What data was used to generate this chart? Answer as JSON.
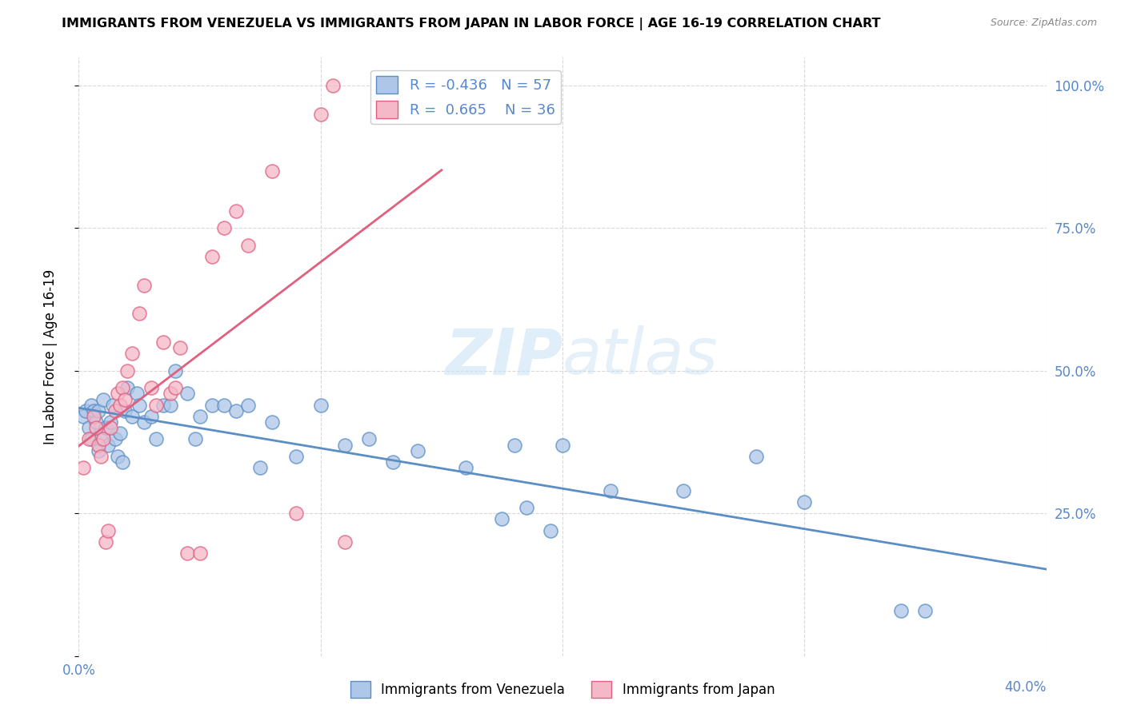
{
  "title": "IMMIGRANTS FROM VENEZUELA VS IMMIGRANTS FROM JAPAN IN LABOR FORCE | AGE 16-19 CORRELATION CHART",
  "source": "Source: ZipAtlas.com",
  "ylabel": "In Labor Force | Age 16-19",
  "xlim": [
    0.0,
    0.4
  ],
  "ylim": [
    0.0,
    1.05
  ],
  "venezuela_color": "#aec6e8",
  "japan_color": "#f5b8c8",
  "venezuela_line_color": "#5b8ec4",
  "japan_line_color": "#e06080",
  "R_venezuela": -0.436,
  "N_venezuela": 57,
  "R_japan": 0.665,
  "N_japan": 36,
  "watermark_zip": "ZIP",
  "watermark_atlas": "atlas",
  "venezuela_x": [
    0.002,
    0.003,
    0.004,
    0.005,
    0.005,
    0.006,
    0.007,
    0.008,
    0.008,
    0.009,
    0.01,
    0.011,
    0.012,
    0.013,
    0.014,
    0.015,
    0.016,
    0.017,
    0.018,
    0.019,
    0.02,
    0.022,
    0.024,
    0.025,
    0.027,
    0.03,
    0.032,
    0.035,
    0.038,
    0.04,
    0.045,
    0.048,
    0.05,
    0.055,
    0.06,
    0.065,
    0.07,
    0.075,
    0.08,
    0.09,
    0.1,
    0.11,
    0.12,
    0.13,
    0.14,
    0.16,
    0.18,
    0.2,
    0.22,
    0.25,
    0.28,
    0.3,
    0.34,
    0.35,
    0.175,
    0.185,
    0.195
  ],
  "venezuela_y": [
    0.42,
    0.43,
    0.4,
    0.44,
    0.38,
    0.43,
    0.41,
    0.36,
    0.43,
    0.38,
    0.45,
    0.4,
    0.37,
    0.41,
    0.44,
    0.38,
    0.35,
    0.39,
    0.34,
    0.43,
    0.47,
    0.42,
    0.46,
    0.44,
    0.41,
    0.42,
    0.38,
    0.44,
    0.44,
    0.5,
    0.46,
    0.38,
    0.42,
    0.44,
    0.44,
    0.43,
    0.44,
    0.33,
    0.41,
    0.35,
    0.44,
    0.37,
    0.38,
    0.34,
    0.36,
    0.33,
    0.37,
    0.37,
    0.29,
    0.29,
    0.35,
    0.27,
    0.08,
    0.08,
    0.24,
    0.26,
    0.22
  ],
  "japan_x": [
    0.002,
    0.004,
    0.006,
    0.007,
    0.008,
    0.009,
    0.01,
    0.011,
    0.012,
    0.013,
    0.015,
    0.016,
    0.017,
    0.018,
    0.019,
    0.02,
    0.022,
    0.025,
    0.027,
    0.03,
    0.032,
    0.035,
    0.038,
    0.04,
    0.042,
    0.045,
    0.05,
    0.055,
    0.06,
    0.065,
    0.07,
    0.08,
    0.09,
    0.1,
    0.105,
    0.11
  ],
  "japan_y": [
    0.33,
    0.38,
    0.42,
    0.4,
    0.37,
    0.35,
    0.38,
    0.2,
    0.22,
    0.4,
    0.43,
    0.46,
    0.44,
    0.47,
    0.45,
    0.5,
    0.53,
    0.6,
    0.65,
    0.47,
    0.44,
    0.55,
    0.46,
    0.47,
    0.54,
    0.18,
    0.18,
    0.7,
    0.75,
    0.78,
    0.72,
    0.85,
    0.25,
    0.95,
    1.0,
    0.2
  ]
}
